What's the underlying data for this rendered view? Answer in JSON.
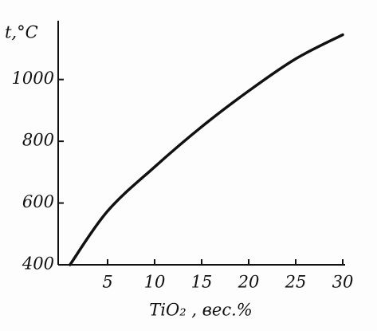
{
  "chart_data": {
    "type": "line",
    "y_label": "t,°C",
    "x_label": "TiO₂ , вес.%",
    "x": [
      1,
      5,
      10,
      15,
      20,
      25,
      30
    ],
    "values": [
      400,
      574,
      717,
      847,
      963,
      1067,
      1145
    ],
    "color": "#111111",
    "xlim": [
      0,
      30
    ],
    "xticks": [
      5,
      10,
      15,
      20,
      25,
      30
    ],
    "ylim": [
      400,
      1180
    ],
    "yticks": [
      400,
      600,
      800,
      1000
    ],
    "grid": false
  }
}
